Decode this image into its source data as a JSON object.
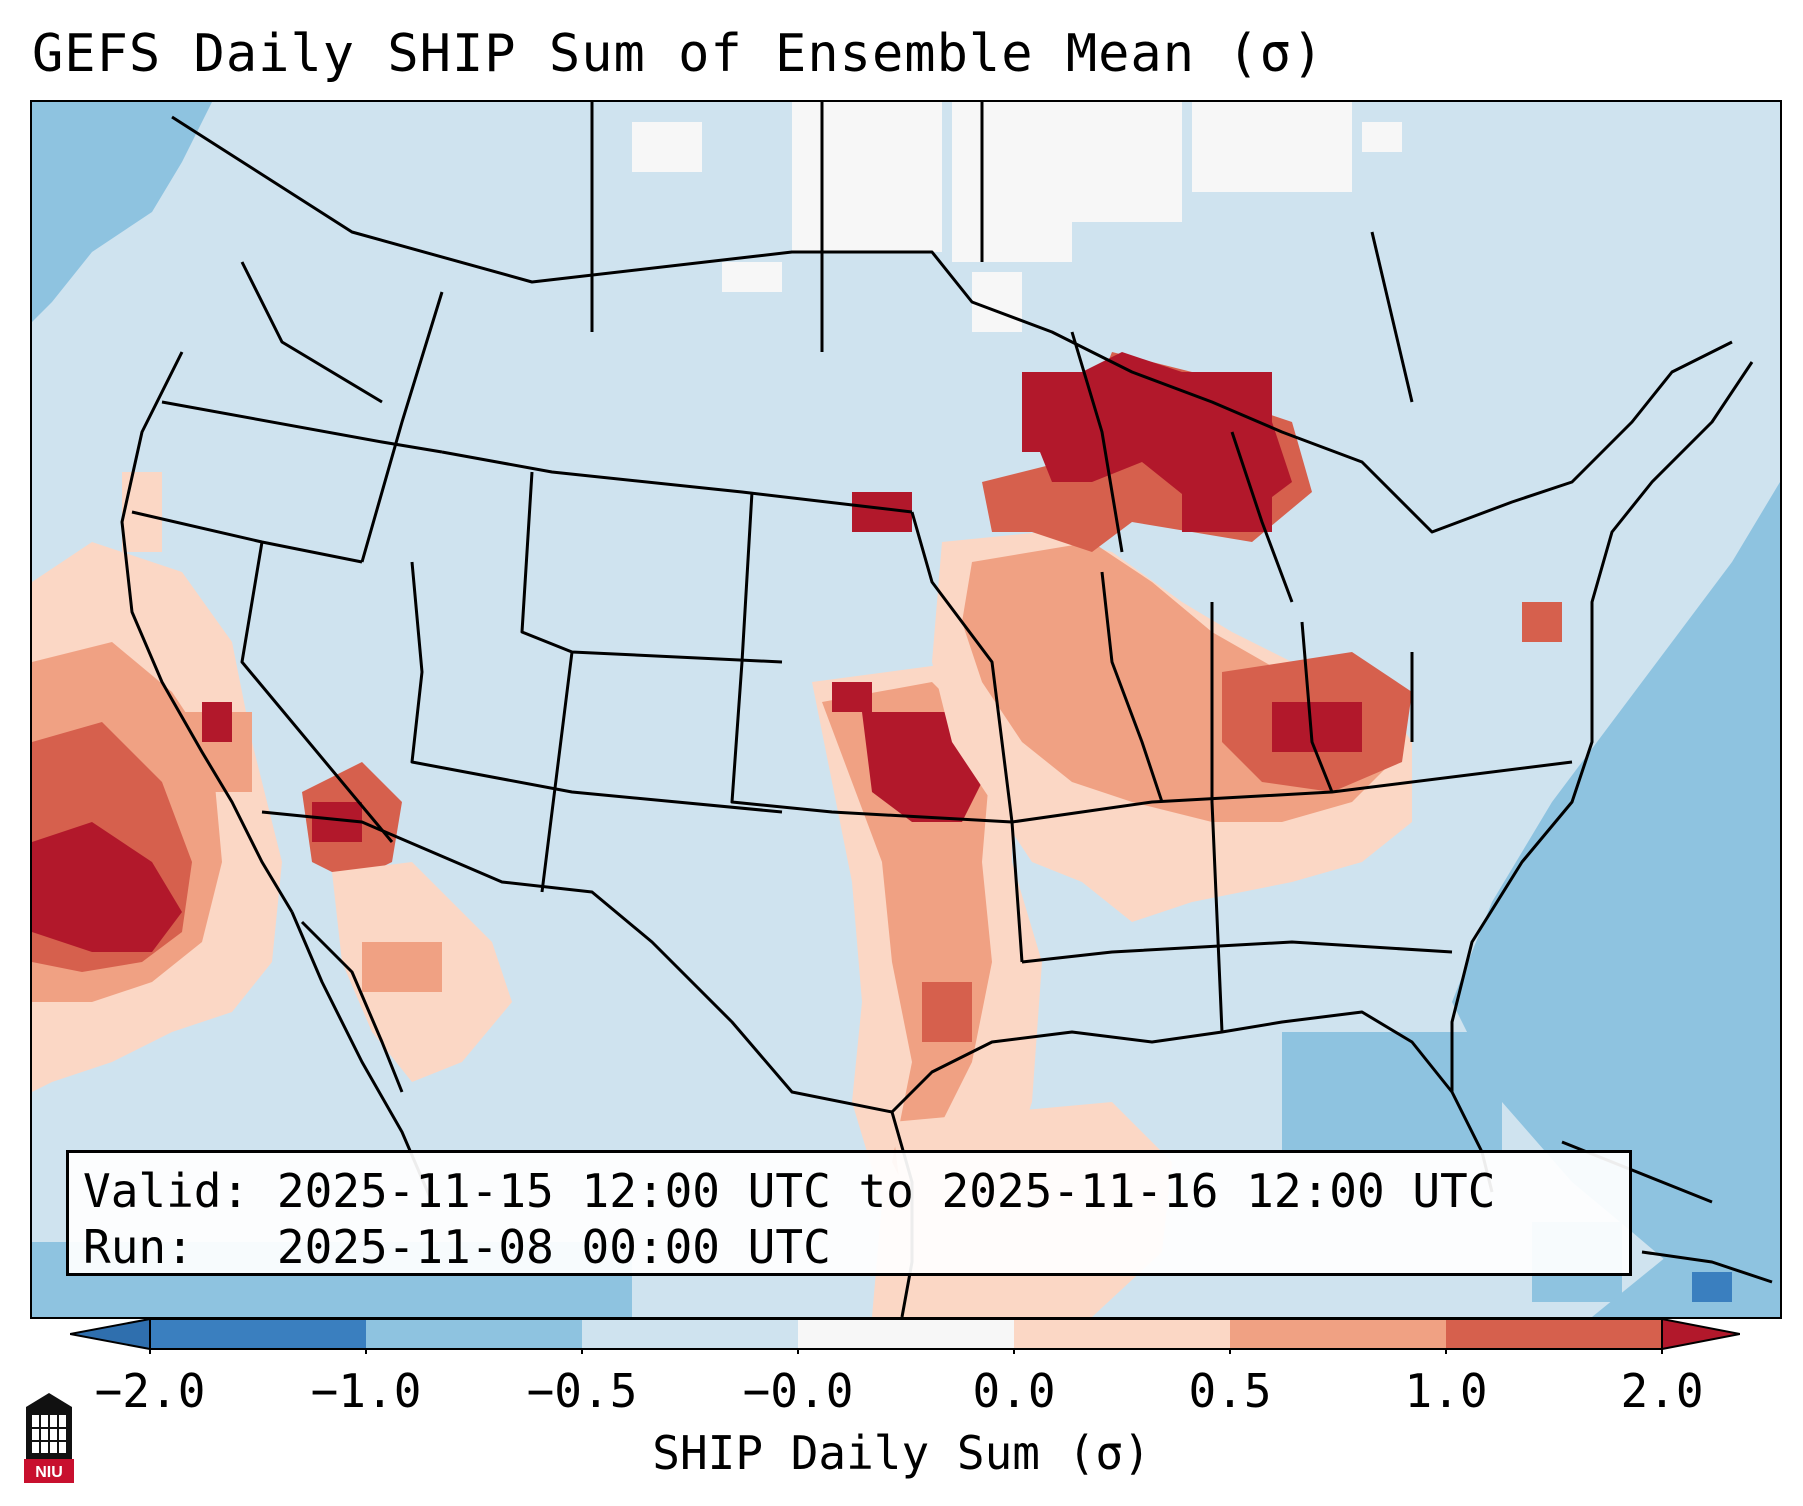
{
  "title": "GEFS Daily SHIP Sum of Ensemble Mean (σ)",
  "info": {
    "valid_label": "Valid:",
    "valid_value": "2025-11-15 12:00 UTC to 2025-11-16 12:00 UTC",
    "run_label": "Run:",
    "run_value": "2025-11-08 00:00 UTC"
  },
  "colorbar": {
    "label": "SHIP Daily Sum (σ)",
    "ticks": [
      "−2.0",
      "−1.0",
      "−0.5",
      "−0.0",
      "0.0",
      "0.5",
      "1.0",
      "2.0"
    ],
    "colors": [
      "#3a7fbf",
      "#8ec3e0",
      "#cfe3ef",
      "#f7f7f7",
      "#fbd7c5",
      "#f0a183",
      "#d6604d",
      "#b2182b"
    ]
  },
  "legend_levels": [
    {
      "range": "< -2.0",
      "color": "#3a7fbf"
    },
    {
      "range": "-2.0 to -1.0",
      "color": "#3a7fbf"
    },
    {
      "range": "-1.0 to -0.5",
      "color": "#8ec3e0"
    },
    {
      "range": "-0.5 to -0.0",
      "color": "#cfe3ef"
    },
    {
      "range": "-0.0 to 0.0",
      "color": "#f7f7f7"
    },
    {
      "range": "0.0 to 0.5",
      "color": "#fbd7c5"
    },
    {
      "range": "0.5 to 1.0",
      "color": "#f0a183"
    },
    {
      "range": "1.0 to 2.0",
      "color": "#d6604d"
    },
    {
      "range": "> 2.0",
      "color": "#b2182b"
    }
  ],
  "logo": {
    "text": "NIU",
    "icon": "niu-logo-icon"
  }
}
